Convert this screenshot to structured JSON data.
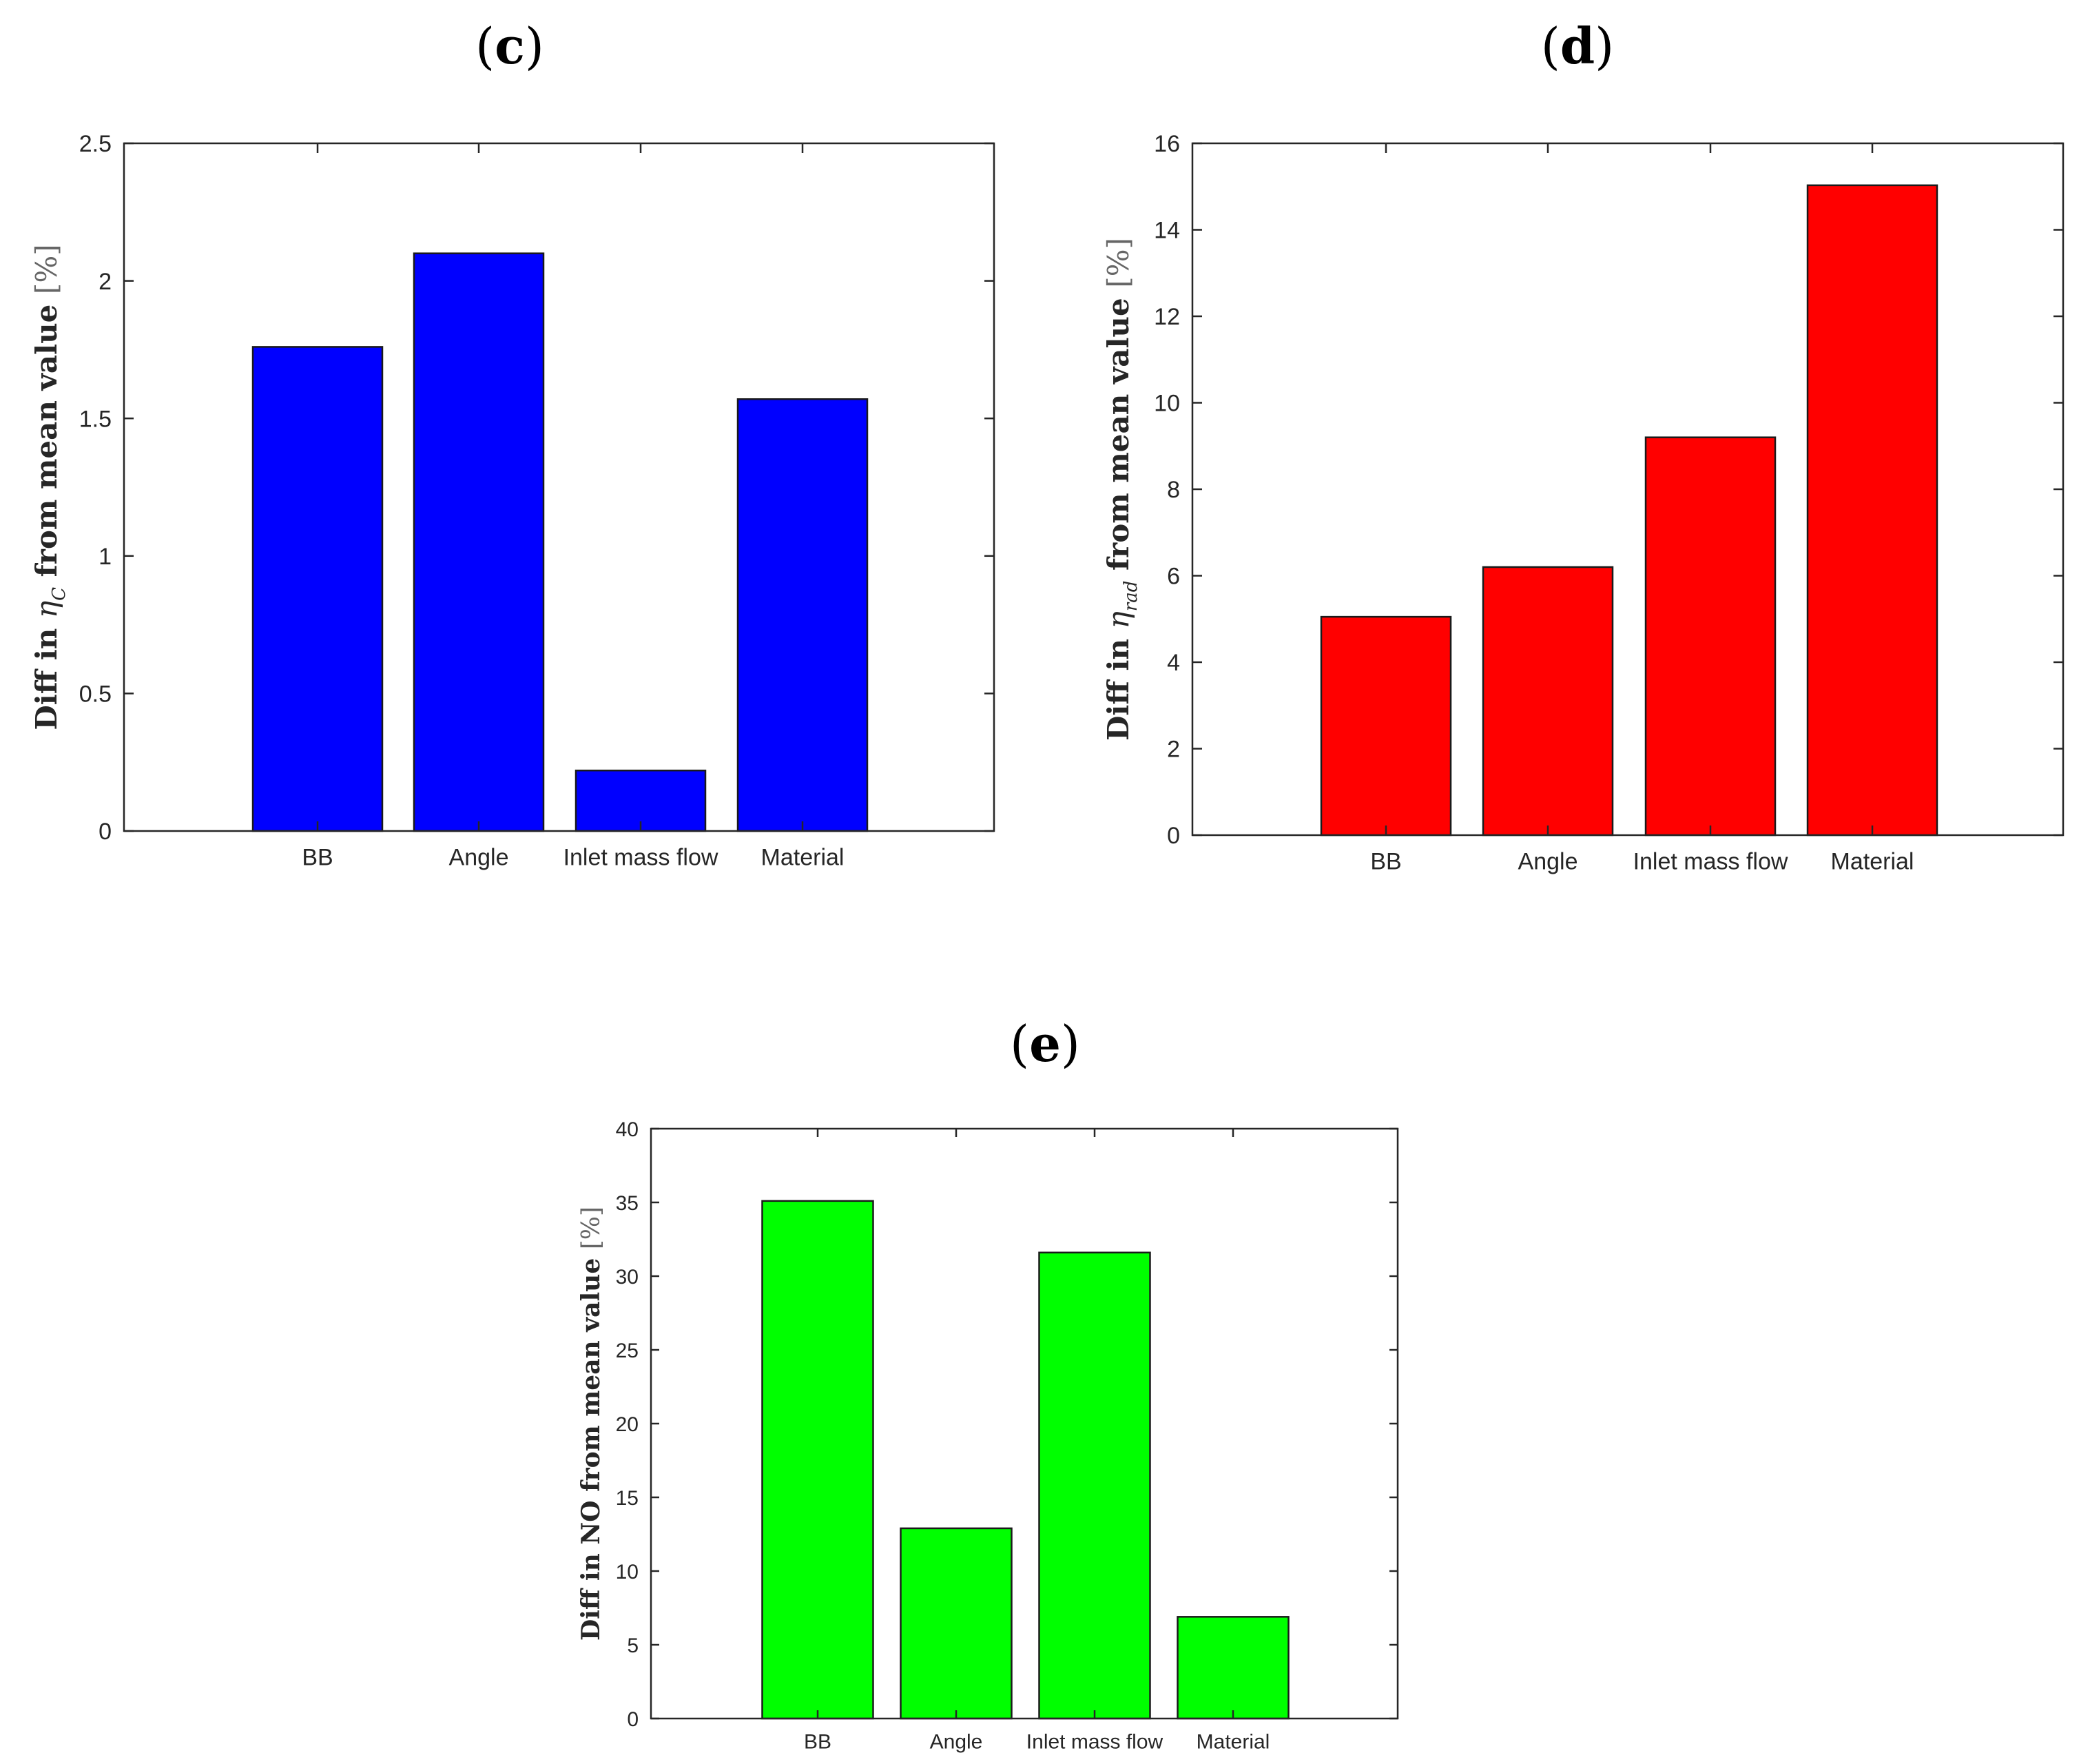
{
  "chart_data": [
    {
      "panel": "c",
      "type": "bar",
      "title": "(c)",
      "categories": [
        "BB",
        "Angle",
        "Inlet mass flow",
        "Material"
      ],
      "values": [
        1.76,
        2.1,
        0.22,
        1.57
      ],
      "ylim": [
        0,
        2.5
      ],
      "yticks": [
        "0",
        "0.5",
        "1",
        "1.5",
        "2",
        "2.5"
      ],
      "xlabel": "",
      "ylabel": {
        "prefix": "Diff in ",
        "symbol": "η",
        "sub": "C",
        "suffix": " from mean value ",
        "unit": "[%]"
      },
      "color": "#0000ff",
      "grid": false
    },
    {
      "panel": "d",
      "type": "bar",
      "title": "(d)",
      "categories": [
        "BB",
        "Angle",
        "Inlet mass flow",
        "Material"
      ],
      "values": [
        5.05,
        6.2,
        9.2,
        15.03
      ],
      "ylim": [
        0,
        16
      ],
      "yticks": [
        "0",
        "2",
        "4",
        "6",
        "8",
        "10",
        "12",
        "14",
        "16"
      ],
      "xlabel": "",
      "ylabel": {
        "prefix": "Diff in ",
        "symbol": "η",
        "sub": "rad",
        "suffix": " from mean value ",
        "unit": "[%]"
      },
      "color": "#ff0000",
      "grid": false
    },
    {
      "panel": "e",
      "type": "bar",
      "title": "(e)",
      "categories": [
        "BB",
        "Angle",
        "Inlet mass flow",
        "Material"
      ],
      "values": [
        35.1,
        12.9,
        31.6,
        6.9
      ],
      "ylim": [
        0,
        40
      ],
      "yticks": [
        "0",
        "5",
        "10",
        "15",
        "20",
        "25",
        "30",
        "35",
        "40"
      ],
      "xlabel": "",
      "ylabel": {
        "prefix": "Diff in NO from mean value ",
        "symbol": "",
        "sub": "",
        "suffix": "",
        "unit": "[%]"
      },
      "color": "#00ff00",
      "grid": false
    }
  ]
}
